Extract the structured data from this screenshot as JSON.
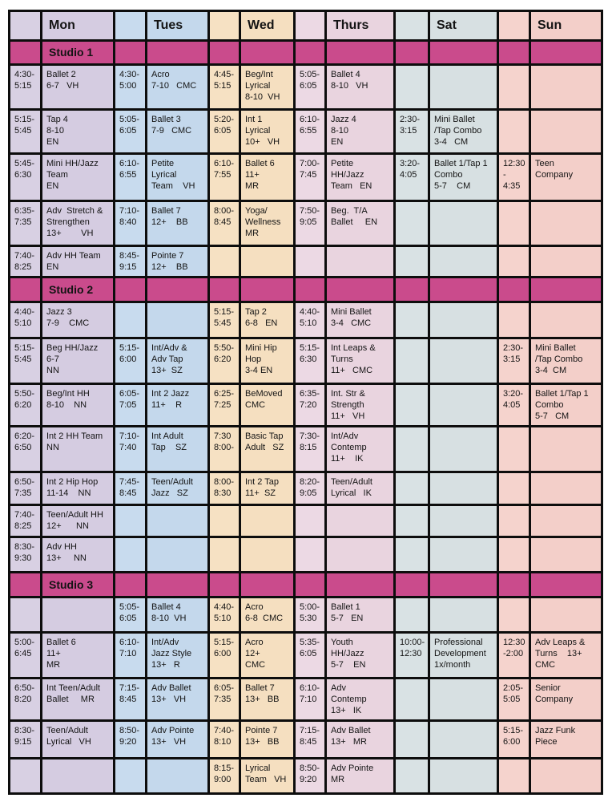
{
  "header": {
    "days": [
      "Mon",
      "Tues",
      "Wed",
      "Thurs",
      "Sat",
      "Sun"
    ]
  },
  "colors": {
    "grid_line": "#0d0d0d",
    "studio_banner": "#ca4b8c",
    "days": {
      "mon": {
        "time": "#d8d0e3",
        "class": "#d5cce1"
      },
      "tues": {
        "time": "#c8dbee",
        "class": "#c4d8ec"
      },
      "wed": {
        "time": "#f6e1c3",
        "class": "#f5dfc0"
      },
      "thurs": {
        "time": "#ecd9e4",
        "class": "#e9d4df"
      },
      "sat": {
        "time": "#d9e2e4",
        "class": "#d7e0e2"
      },
      "sun": {
        "time": "#f5d3cd",
        "class": "#f3cfc9"
      }
    }
  },
  "sections": [
    {
      "label": "Studio 1",
      "rows": [
        {
          "cells": [
            {
              "time": "4:30-\n5:15",
              "text": "Ballet 2\n6-7   VH"
            },
            {
              "time": "4:30-\n5:00",
              "text": "Acro\n7-10   CMC"
            },
            {
              "time": "4:45-\n5:15",
              "text": "Beg/Int\nLyrical\n8-10  VH"
            },
            {
              "time": "5:05-\n6:05",
              "text": "Ballet 4\n8-10   VH"
            },
            {
              "time": "",
              "text": ""
            },
            {
              "time": "",
              "text": ""
            }
          ]
        },
        {
          "cells": [
            {
              "time": "5:15-\n5:45",
              "text": "Tap 4\n8-10\nEN"
            },
            {
              "time": "5:05-\n6:05",
              "text": "Ballet 3\n7-9   CMC"
            },
            {
              "time": "5:20-\n6:05",
              "text": "Int 1\nLyrical\n10+   VH"
            },
            {
              "time": "6:10-\n6:55",
              "text": "Jazz 4\n8-10\nEN"
            },
            {
              "time": "2:30-\n3:15",
              "text": "Mini Ballet\n/Tap Combo\n3-4   CM"
            },
            {
              "time": "",
              "text": ""
            }
          ]
        },
        {
          "cells": [
            {
              "time": "5:45-\n6:30",
              "text": "Mini HH/Jazz\nTeam\nEN"
            },
            {
              "time": "6:10-\n6:55",
              "text": "Petite\nLyrical\nTeam    VH"
            },
            {
              "time": "6:10-\n7:55",
              "text": "Ballet 6\n11+\nMR"
            },
            {
              "time": "7:00-\n7:45",
              "text": "Petite\nHH/Jazz\nTeam   EN"
            },
            {
              "time": "3:20-\n4:05",
              "text": "Ballet 1/Tap 1\nCombo\n5-7    CM"
            },
            {
              "time": "12:30\n-\n4:35",
              "text": "Teen\nCompany"
            }
          ]
        },
        {
          "cells": [
            {
              "time": "6:35-\n7:35",
              "text": "Adv  Stretch &\nStrengthen\n13+        VH"
            },
            {
              "time": "7:10-\n8:40",
              "text": "Ballet 7\n12+    BB"
            },
            {
              "time": "8:00-\n8:45",
              "text": "Yoga/\nWellness\nMR"
            },
            {
              "time": "7:50-\n9:05",
              "text": "Beg.  T/A\nBallet     EN"
            },
            {
              "time": "",
              "text": ""
            },
            {
              "time": "",
              "text": ""
            }
          ]
        },
        {
          "cells": [
            {
              "time": "7:40-\n8:25",
              "text": "Adv HH Team\nEN"
            },
            {
              "time": "8:45-\n9:15",
              "text": "Pointe 7\n12+    BB"
            },
            {
              "time": "",
              "text": ""
            },
            {
              "time": "",
              "text": ""
            },
            {
              "time": "",
              "text": ""
            },
            {
              "time": "",
              "text": ""
            }
          ]
        }
      ]
    },
    {
      "label": "Studio 2",
      "rows": [
        {
          "cells": [
            {
              "time": "4:40-\n5:10",
              "text": "Jazz 3\n7-9    CMC"
            },
            {
              "time": "",
              "text": ""
            },
            {
              "time": "5:15-\n5:45",
              "text": "Tap 2\n6-8   EN"
            },
            {
              "time": "4:40-\n5:10",
              "text": "Mini Ballet\n3-4   CMC"
            },
            {
              "time": "",
              "text": ""
            },
            {
              "time": "",
              "text": ""
            }
          ]
        },
        {
          "cells": [
            {
              "time": "5:15-\n5:45",
              "text": "Beg HH/Jazz\n6-7\nNN"
            },
            {
              "time": "5:15-\n6:00",
              "text": "Int/Adv &\nAdv Tap\n13+  SZ"
            },
            {
              "time": "5:50-\n6:20",
              "text": "Mini Hip\nHop\n3-4 EN"
            },
            {
              "time": "5:15-\n6:30",
              "text": "Int Leaps &\nTurns\n11+   CMC"
            },
            {
              "time": "",
              "text": ""
            },
            {
              "time": "2:30-\n3:15",
              "text": "Mini Ballet\n/Tap Combo\n3-4  CM"
            }
          ]
        },
        {
          "cells": [
            {
              "time": "5:50-\n6:20",
              "text": "Beg/Int HH\n8-10    NN"
            },
            {
              "time": "6:05-\n7:05",
              "text": "Int 2 Jazz\n11+    R"
            },
            {
              "time": "6:25-\n7:25",
              "text": "BeMoved\nCMC"
            },
            {
              "time": "6:35-\n7:20",
              "text": "Int. Str &\nStrength\n11+   VH"
            },
            {
              "time": "",
              "text": ""
            },
            {
              "time": "3:20-\n4:05",
              "text": "Ballet 1/Tap 1\nCombo\n5-7   CM"
            }
          ]
        },
        {
          "cells": [
            {
              "time": "6:20-\n6:50",
              "text": "Int 2 HH Team\nNN"
            },
            {
              "time": "7:10-\n7:40",
              "text": "Int Adult\nTap    SZ"
            },
            {
              "time": "7:30\n8:00-",
              "text": "Basic Tap\nAdult   SZ"
            },
            {
              "time": "7:30-\n8:15",
              "text": "Int/Adv\nContemp\n11+    IK"
            },
            {
              "time": "",
              "text": ""
            },
            {
              "time": "",
              "text": ""
            }
          ]
        },
        {
          "cells": [
            {
              "time": "6:50-\n7:35",
              "text": "Int 2 Hip Hop\n11-14    NN"
            },
            {
              "time": "7:45-\n8:45",
              "text": "Teen/Adult\nJazz   SZ"
            },
            {
              "time": "8:00-\n8:30",
              "text": "Int 2 Tap\n11+  SZ"
            },
            {
              "time": "8:20-\n9:05",
              "text": "Teen/Adult\nLyrical   IK"
            },
            {
              "time": "",
              "text": ""
            },
            {
              "time": "",
              "text": ""
            }
          ]
        },
        {
          "cells": [
            {
              "time": "7:40-\n8:25",
              "text": "Teen/Adult HH\n12+      NN"
            },
            {
              "time": "",
              "text": ""
            },
            {
              "time": "",
              "text": ""
            },
            {
              "time": "",
              "text": ""
            },
            {
              "time": "",
              "text": ""
            },
            {
              "time": "",
              "text": ""
            }
          ]
        },
        {
          "cells": [
            {
              "time": "8:30-\n9:30",
              "text": "Adv HH\n13+     NN"
            },
            {
              "time": "",
              "text": ""
            },
            {
              "time": "",
              "text": ""
            },
            {
              "time": "",
              "text": ""
            },
            {
              "time": "",
              "text": ""
            },
            {
              "time": "",
              "text": ""
            }
          ]
        }
      ]
    },
    {
      "label": "Studio 3",
      "rows": [
        {
          "cells": [
            {
              "time": "",
              "text": ""
            },
            {
              "time": "5:05-\n6:05",
              "text": "Ballet 4\n8-10  VH"
            },
            {
              "time": "4:40-\n5:10",
              "text": "Acro\n6-8  CMC"
            },
            {
              "time": "5:00-\n5:30",
              "text": "Ballet 1\n5-7   EN"
            },
            {
              "time": "",
              "text": ""
            },
            {
              "time": "",
              "text": ""
            }
          ]
        },
        {
          "cells": [
            {
              "time": "5:00-\n6:45",
              "text": "Ballet 6\n11+\nMR"
            },
            {
              "time": "6:10-\n7:10",
              "text": "Int/Adv\nJazz Style\n13+   R"
            },
            {
              "time": "5:15-\n6:00",
              "text": "Acro\n12+\nCMC"
            },
            {
              "time": "5:35-\n6:05",
              "text": "Youth\nHH/Jazz\n5-7    EN"
            },
            {
              "time": "10:00-\n12:30",
              "text": "Professional\nDevelopment\n1x/month"
            },
            {
              "time": "12:30\n-2:00",
              "text": "Adv Leaps &\nTurns    13+\nCMC"
            }
          ]
        },
        {
          "cells": [
            {
              "time": "6:50-\n8:20",
              "text": "Int Teen/Adult\nBallet     MR"
            },
            {
              "time": "7:15-\n8:45",
              "text": "Adv Ballet\n13+   VH"
            },
            {
              "time": "6:05-\n7:35",
              "text": "Ballet 7\n13+   BB"
            },
            {
              "time": "6:10-\n7:10",
              "text": "Adv\nContemp\n13+   IK"
            },
            {
              "time": "",
              "text": ""
            },
            {
              "time": "2:05-\n5:05",
              "text": "Senior\nCompany"
            }
          ]
        },
        {
          "cells": [
            {
              "time": "8:30-\n9:15",
              "text": "Teen/Adult\nLyrical   VH"
            },
            {
              "time": "8:50-\n9:20",
              "text": "Adv Pointe\n13+   VH"
            },
            {
              "time": "7:40-\n8:10",
              "text": "Pointe 7\n13+   BB"
            },
            {
              "time": "7:15-\n8:45",
              "text": "Adv Ballet\n13+   MR"
            },
            {
              "time": "",
              "text": ""
            },
            {
              "time": "5:15-\n6:00",
              "text": "Jazz Funk\nPiece"
            }
          ]
        },
        {
          "cells": [
            {
              "time": "",
              "text": ""
            },
            {
              "time": "",
              "text": ""
            },
            {
              "time": "8:15-\n9:00",
              "text": "Lyrical\nTeam   VH"
            },
            {
              "time": "8:50-\n9:20",
              "text": "Adv Pointe\nMR"
            },
            {
              "time": "",
              "text": ""
            },
            {
              "time": "",
              "text": ""
            }
          ]
        }
      ]
    }
  ]
}
